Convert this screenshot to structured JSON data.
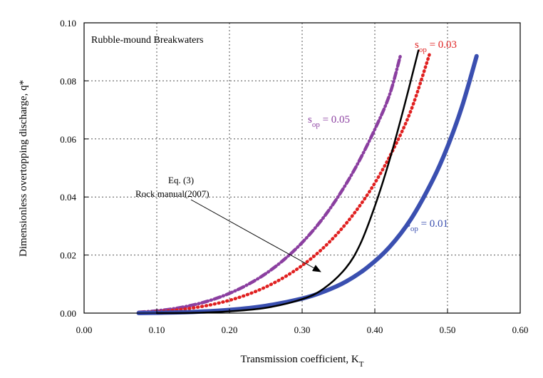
{
  "chart_data": {
    "type": "line",
    "title": "Rubble-mound Breakwaters",
    "xlabel": "Transmission coefficient, K",
    "xlabel_sub": "T",
    "ylabel": "Dimensionless overtopping discharge, q*",
    "xlim": [
      0,
      0.6
    ],
    "ylim": [
      0,
      0.1
    ],
    "xticks": [
      0.0,
      0.1,
      0.2,
      0.3,
      0.4,
      0.5,
      0.6
    ],
    "xtick_labels": [
      "0.00",
      "0.10",
      "0.20",
      "0.30",
      "0.40",
      "0.50",
      "0.60"
    ],
    "yticks": [
      0.0,
      0.02,
      0.04,
      0.06,
      0.08,
      0.1
    ],
    "ytick_labels": [
      "0.00",
      "0.02",
      "0.04",
      "0.06",
      "0.08",
      "0.10"
    ],
    "grid": true,
    "series": [
      {
        "label_main": "s",
        "label_sub": "op",
        "label_rest": " = 0.05",
        "color": "#8B3FA0",
        "style": "dashdot",
        "width": 4.5,
        "x": [
          0.075,
          0.1,
          0.125,
          0.15,
          0.175,
          0.2,
          0.225,
          0.25,
          0.275,
          0.3,
          0.325,
          0.35,
          0.375,
          0.4,
          0.42,
          0.435
        ],
        "y": [
          0.0003,
          0.0008,
          0.0016,
          0.0028,
          0.0045,
          0.0068,
          0.0098,
          0.0136,
          0.0184,
          0.0243,
          0.0315,
          0.0403,
          0.0508,
          0.0633,
          0.075,
          0.0885
        ]
      },
      {
        "label_main": "s",
        "label_sub": "op",
        "label_rest": " = 0.03",
        "color": "#E02020",
        "style": "dotted",
        "width": 4.5,
        "x": [
          0.08,
          0.1,
          0.125,
          0.15,
          0.175,
          0.2,
          0.225,
          0.25,
          0.275,
          0.3,
          0.325,
          0.35,
          0.375,
          0.4,
          0.425,
          0.45,
          0.475
        ],
        "y": [
          0.0002,
          0.0005,
          0.001,
          0.0018,
          0.0029,
          0.0044,
          0.0064,
          0.009,
          0.0123,
          0.0164,
          0.0215,
          0.0278,
          0.0355,
          0.0448,
          0.0562,
          0.07,
          0.089
        ]
      },
      {
        "label_main": "s",
        "label_sub": "op",
        "label_rest": " = 0.01",
        "color": "#3A4FB0",
        "style": "solid",
        "width": 6,
        "x": [
          0.075,
          0.1,
          0.15,
          0.2,
          0.25,
          0.3,
          0.33,
          0.36,
          0.39,
          0.42,
          0.45,
          0.48,
          0.5,
          0.52,
          0.54
        ],
        "y": [
          0.0,
          0.0001,
          0.0004,
          0.0011,
          0.0025,
          0.005,
          0.0074,
          0.0108,
          0.0158,
          0.0227,
          0.0325,
          0.046,
          0.0573,
          0.0712,
          0.0885
        ]
      },
      {
        "label_main": "Eq. (3)",
        "label_line2": "Rock manual(2007)",
        "color": "#000000",
        "style": "solid",
        "width": 2.5,
        "x": [
          0.1,
          0.15,
          0.2,
          0.25,
          0.3,
          0.33,
          0.36,
          0.38,
          0.4,
          0.42,
          0.44,
          0.46
        ],
        "y": [
          0.0,
          0.0001,
          0.0006,
          0.0018,
          0.0048,
          0.0085,
          0.0155,
          0.0238,
          0.0368,
          0.0525,
          0.0708,
          0.0905
        ]
      }
    ]
  }
}
